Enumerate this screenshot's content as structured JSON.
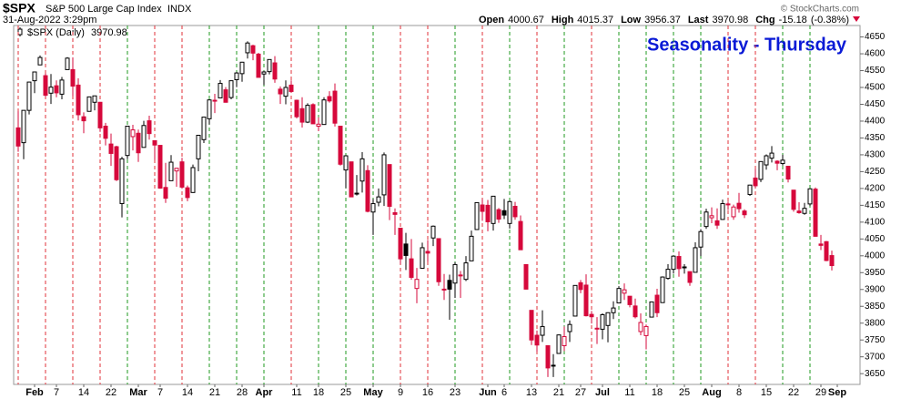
{
  "chart_data": {
    "type": "candlestick",
    "symbol": "$SPX",
    "name": "S&P 500 Large Cap Index",
    "exchange": "INDX",
    "timestamp": "31-Aug-2022 3:29pm",
    "quote": [
      {
        "label": "Open",
        "value": 4000.67
      },
      {
        "label": "High",
        "value": 4015.37
      },
      {
        "label": "Low",
        "value": 3956.37
      },
      {
        "label": "Last",
        "value": 3970.98
      },
      {
        "label": "Chg",
        "value": -15.18
      }
    ],
    "change_pct_label": "(-0.38%)",
    "copyright": "© StockCharts.com",
    "legend_label": "$SPX (Daily)",
    "legend_value": 3970.98,
    "title": "Seasonality - Thursday",
    "title_color": "#0a1ad6",
    "up_color": "#000000",
    "down_color": "#d6083b",
    "ylim": [
      3618,
      4684
    ],
    "yticks": [
      3650,
      3700,
      3750,
      3800,
      3850,
      3900,
      3950,
      4000,
      4050,
      4100,
      4150,
      4200,
      4250,
      4300,
      4350,
      4400,
      4450,
      4500,
      4550,
      4600,
      4650
    ],
    "categories": [
      null,
      null,
      null,
      "Feb",
      null,
      null,
      null,
      "7",
      null,
      null,
      null,
      null,
      "14",
      null,
      null,
      null,
      null,
      "22",
      null,
      null,
      null,
      null,
      "Mar",
      null,
      null,
      null,
      "7",
      null,
      null,
      null,
      null,
      "14",
      null,
      null,
      null,
      null,
      "21",
      null,
      null,
      null,
      null,
      "28",
      null,
      null,
      null,
      "Apr",
      null,
      null,
      null,
      null,
      null,
      "11",
      null,
      null,
      null,
      "18",
      null,
      null,
      null,
      null,
      "25",
      null,
      null,
      null,
      null,
      "May",
      null,
      null,
      null,
      null,
      "9",
      null,
      null,
      null,
      null,
      "16",
      null,
      null,
      null,
      null,
      "23",
      null,
      null,
      null,
      null,
      null,
      "Jun",
      null,
      null,
      "6",
      null,
      null,
      null,
      null,
      "13",
      null,
      null,
      null,
      null,
      "21",
      null,
      null,
      null,
      "27",
      null,
      null,
      null,
      "Jul",
      null,
      null,
      null,
      null,
      "11",
      null,
      null,
      null,
      null,
      "18",
      null,
      null,
      null,
      null,
      "25",
      null,
      null,
      null,
      null,
      "Aug",
      null,
      null,
      null,
      null,
      "8",
      null,
      null,
      null,
      null,
      "15",
      null,
      null,
      null,
      null,
      "22",
      null,
      null,
      null,
      null,
      "29",
      null,
      null,
      "Sep"
    ],
    "ohlc": [
      [
        4380,
        4429,
        4309,
        4326
      ],
      [
        4336,
        4432,
        4287,
        4432
      ],
      [
        4432,
        4517,
        4420,
        4516
      ],
      [
        4520,
        4546,
        4483,
        4546
      ],
      [
        4567,
        4595,
        4567,
        4589
      ],
      [
        4535,
        4542,
        4471,
        4477
      ],
      [
        4483,
        4540,
        4451,
        4501
      ],
      [
        4505,
        4521,
        4471,
        4484
      ],
      [
        4480,
        4531,
        4465,
        4522
      ],
      [
        4553,
        4590,
        4553,
        4587
      ],
      [
        4553,
        4589,
        4475,
        4504
      ],
      [
        4507,
        4527,
        4402,
        4419
      ],
      [
        4413,
        4426,
        4364,
        4401
      ],
      [
        4429,
        4473,
        4429,
        4472
      ],
      [
        4456,
        4475,
        4432,
        4475
      ],
      [
        4456,
        4457,
        4368,
        4380
      ],
      [
        4385,
        4395,
        4328,
        4349
      ],
      [
        4332,
        4363,
        4267,
        4304
      ],
      [
        4324,
        4327,
        4222,
        4226
      ],
      [
        4155,
        4294,
        4114,
        4288
      ],
      [
        4298,
        4385,
        4287,
        4385
      ],
      [
        4354,
        4389,
        4313,
        4374
      ],
      [
        4364,
        4375,
        4279,
        4306
      ],
      [
        4322,
        4401,
        4322,
        4387
      ],
      [
        4401,
        4416,
        4345,
        4363
      ],
      [
        4342,
        4342,
        4285,
        4329
      ],
      [
        4328,
        4328,
        4199,
        4201
      ],
      [
        4203,
        4276,
        4157,
        4171
      ],
      [
        4223,
        4299,
        4223,
        4278
      ],
      [
        4252,
        4261,
        4205,
        4260
      ],
      [
        4279,
        4291,
        4199,
        4204
      ],
      [
        4202,
        4209,
        4162,
        4173
      ],
      [
        4188,
        4271,
        4187,
        4262
      ],
      [
        4288,
        4358,
        4251,
        4358
      ],
      [
        4345,
        4412,
        4335,
        4412
      ],
      [
        4407,
        4465,
        4390,
        4463
      ],
      [
        4462,
        4481,
        4424,
        4461
      ],
      [
        4469,
        4522,
        4469,
        4512
      ],
      [
        4493,
        4501,
        4455,
        4456
      ],
      [
        4470,
        4520,
        4465,
        4520
      ],
      [
        4523,
        4546,
        4501,
        4543
      ],
      [
        4541,
        4576,
        4517,
        4575
      ],
      [
        4603,
        4637,
        4586,
        4632
      ],
      [
        4624,
        4627,
        4581,
        4602
      ],
      [
        4599,
        4603,
        4530,
        4530
      ],
      [
        4540,
        4549,
        4507,
        4546
      ],
      [
        4547,
        4583,
        4539,
        4583
      ],
      [
        4573,
        4593,
        4514,
        4525
      ],
      [
        4495,
        4503,
        4451,
        4481
      ],
      [
        4474,
        4521,
        4450,
        4500
      ],
      [
        4507,
        4521,
        4485,
        4488
      ],
      [
        4462,
        4464,
        4408,
        4413
      ],
      [
        4437,
        4471,
        4381,
        4397
      ],
      [
        4397,
        4453,
        4394,
        4447
      ],
      [
        4449,
        4453,
        4392,
        4392
      ],
      [
        4385,
        4411,
        4370,
        4391
      ],
      [
        4390,
        4471,
        4390,
        4463
      ],
      [
        4473,
        4489,
        4455,
        4460
      ],
      [
        4489,
        4512,
        4384,
        4394
      ],
      [
        4385,
        4386,
        4268,
        4272
      ],
      [
        4255,
        4299,
        4201,
        4297
      ],
      [
        4279,
        4279,
        4175,
        4175
      ],
      [
        4186,
        4240,
        4179,
        4184
      ],
      [
        4222,
        4308,
        4188,
        4288
      ],
      [
        4253,
        4269,
        4129,
        4132
      ],
      [
        4130,
        4169,
        4062,
        4155
      ],
      [
        4159,
        4200,
        4147,
        4175
      ],
      [
        4181,
        4307,
        4148,
        4300
      ],
      [
        4271,
        4271,
        4106,
        4147
      ],
      [
        4128,
        4141,
        4062,
        4123
      ],
      [
        4082,
        4082,
        3975,
        3991
      ],
      [
        4035,
        4068,
        3958,
        4001
      ],
      [
        3991,
        4050,
        3929,
        3936
      ],
      [
        3903,
        3964,
        3859,
        3930
      ],
      [
        3963,
        4039,
        3963,
        4024
      ],
      [
        4013,
        4047,
        3983,
        4008
      ],
      [
        4053,
        4090,
        4029,
        4088
      ],
      [
        4051,
        4051,
        3911,
        3923
      ],
      [
        3900,
        3946,
        3869,
        3901
      ],
      [
        3927,
        3944,
        3810,
        3901
      ],
      [
        3919,
        3981,
        3875,
        3974
      ],
      [
        3943,
        3955,
        3875,
        3941
      ],
      [
        3930,
        3999,
        3925,
        3979
      ],
      [
        3985,
        4075,
        3985,
        4058
      ],
      [
        4078,
        4158,
        4078,
        4158
      ],
      [
        4151,
        4168,
        4104,
        4132
      ],
      [
        4150,
        4166,
        4073,
        4101
      ],
      [
        4096,
        4177,
        4075,
        4177
      ],
      [
        4137,
        4142,
        4098,
        4109
      ],
      [
        4134,
        4169,
        4109,
        4121
      ],
      [
        4096,
        4164,
        4081,
        4161
      ],
      [
        4147,
        4160,
        4107,
        4116
      ],
      [
        4102,
        4120,
        4018,
        4018
      ],
      [
        3974,
        3974,
        3900,
        3901
      ],
      [
        3838,
        3838,
        3735,
        3750
      ],
      [
        3764,
        3778,
        3715,
        3735
      ],
      [
        3764,
        3838,
        3744,
        3790
      ],
      [
        3733,
        3733,
        3640,
        3667
      ],
      [
        3675,
        3708,
        3640,
        3675
      ],
      [
        3710,
        3766,
        3710,
        3765
      ],
      [
        3733,
        3790,
        3717,
        3760
      ],
      [
        3775,
        3808,
        3744,
        3796
      ],
      [
        3821,
        3913,
        3821,
        3912
      ],
      [
        3920,
        3928,
        3889,
        3900
      ],
      [
        3913,
        3945,
        3820,
        3822
      ],
      [
        3826,
        3836,
        3799,
        3819
      ],
      [
        3785,
        3818,
        3738,
        3785
      ],
      [
        3782,
        3829,
        3752,
        3825
      ],
      [
        3793,
        3832,
        3743,
        3831
      ],
      [
        3831,
        3865,
        3812,
        3845
      ],
      [
        3860,
        3910,
        3859,
        3903
      ],
      [
        3889,
        3918,
        3869,
        3899
      ],
      [
        3880,
        3880,
        3847,
        3855
      ],
      [
        3851,
        3873,
        3814,
        3819
      ],
      [
        3775,
        3829,
        3764,
        3802
      ],
      [
        3763,
        3796,
        3722,
        3790
      ],
      [
        3818,
        3863,
        3818,
        3863
      ],
      [
        3883,
        3902,
        3818,
        3831
      ],
      [
        3861,
        3939,
        3861,
        3937
      ],
      [
        3933,
        3975,
        3929,
        3960
      ],
      [
        3960,
        4000,
        3947,
        3999
      ],
      [
        3998,
        4013,
        3938,
        3962
      ],
      [
        3965,
        3975,
        3947,
        3967
      ],
      [
        3953,
        3953,
        3911,
        3921
      ],
      [
        3951,
        4040,
        3951,
        4024
      ],
      [
        4026,
        4079,
        3999,
        4072
      ],
      [
        4087,
        4140,
        4080,
        4130
      ],
      [
        4113,
        4144,
        4097,
        4119
      ],
      [
        4104,
        4141,
        4080,
        4091
      ],
      [
        4108,
        4167,
        4107,
        4155
      ],
      [
        4154,
        4161,
        4136,
        4152
      ],
      [
        4116,
        4152,
        4107,
        4145
      ],
      [
        4156,
        4187,
        4128,
        4140
      ],
      [
        4133,
        4138,
        4112,
        4122
      ],
      [
        4182,
        4211,
        4178,
        4210
      ],
      [
        4231,
        4258,
        4201,
        4208
      ],
      [
        4227,
        4280,
        4219,
        4280
      ],
      [
        4270,
        4301,
        4256,
        4297
      ],
      [
        4290,
        4326,
        4277,
        4305
      ],
      [
        4281,
        4284,
        4254,
        4275
      ],
      [
        4274,
        4300,
        4268,
        4284
      ],
      [
        4266,
        4266,
        4218,
        4228
      ],
      [
        4195,
        4196,
        4131,
        4138
      ],
      [
        4133,
        4159,
        4125,
        4128
      ],
      [
        4126,
        4157,
        4122,
        4141
      ],
      [
        4154,
        4200,
        4148,
        4199
      ],
      [
        4198,
        4203,
        4057,
        4058
      ],
      [
        4035,
        4062,
        4017,
        4031
      ],
      [
        4042,
        4044,
        3984,
        3986
      ],
      [
        4000.67,
        4015.37,
        3956.37,
        3970.98
      ],
      null
    ]
  }
}
